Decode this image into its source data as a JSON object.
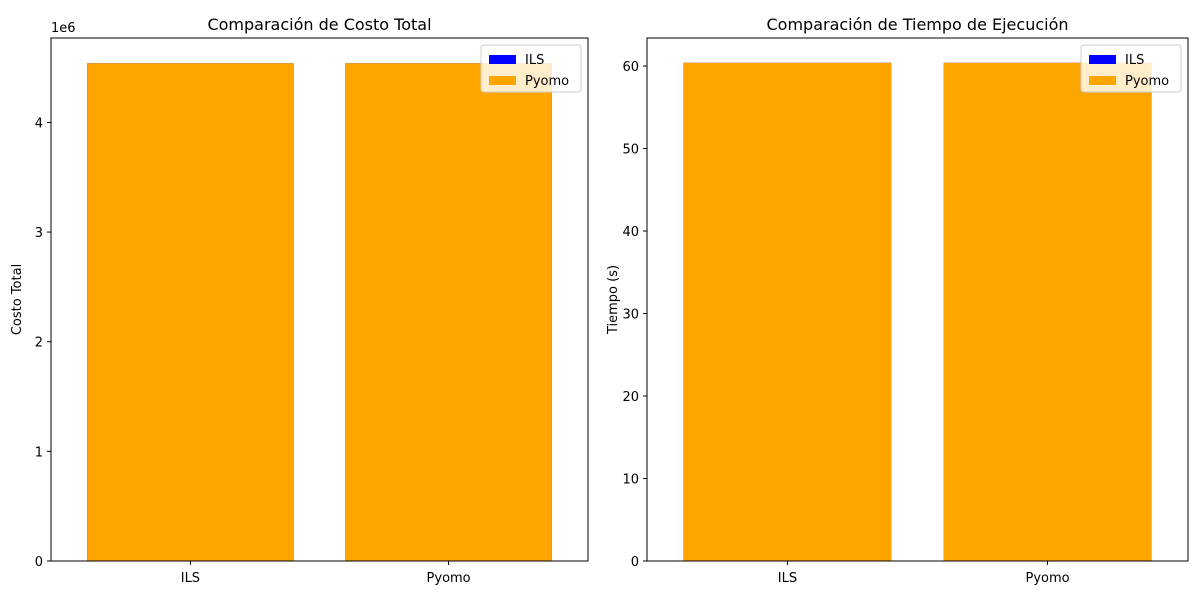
{
  "chart_data": [
    {
      "type": "bar",
      "title": "Comparación de Costo Total",
      "xlabel": "",
      "ylabel": "Costo Total",
      "offset_text": "1e6",
      "categories": [
        "ILS",
        "Pyomo"
      ],
      "series": [
        {
          "name": "ILS",
          "color": "#0000ff",
          "values": [
            4540000,
            4540000
          ]
        },
        {
          "name": "Pyomo",
          "color": "#ffa500",
          "values": [
            4540000,
            4540000
          ]
        }
      ],
      "ylim": [
        0,
        4770000
      ],
      "yticks": [
        0,
        1000000,
        2000000,
        3000000,
        4000000
      ],
      "ytick_labels": [
        "0",
        "1",
        "2",
        "3",
        "4"
      ],
      "legend": "top-right",
      "grid": false
    },
    {
      "type": "bar",
      "title": "Comparación de Tiempo de Ejecución",
      "xlabel": "",
      "ylabel": "Tiempo (s)",
      "offset_text": "",
      "categories": [
        "ILS",
        "Pyomo"
      ],
      "series": [
        {
          "name": "ILS",
          "color": "#0000ff",
          "values": [
            60.4,
            60.4
          ]
        },
        {
          "name": "Pyomo",
          "color": "#ffa500",
          "values": [
            60.4,
            60.4
          ]
        }
      ],
      "ylim": [
        0,
        63.4
      ],
      "yticks": [
        0,
        10,
        20,
        30,
        40,
        50,
        60
      ],
      "ytick_labels": [
        "0",
        "10",
        "20",
        "30",
        "40",
        "50",
        "60"
      ],
      "legend": "top-right",
      "grid": false
    }
  ]
}
